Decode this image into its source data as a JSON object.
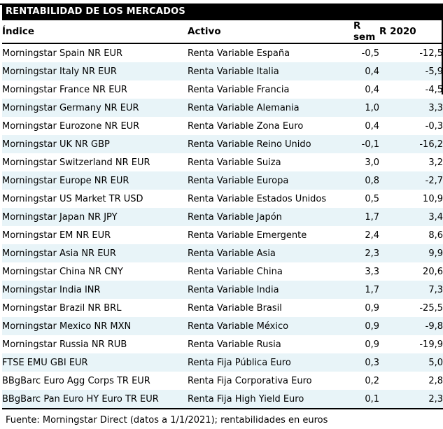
{
  "title": "RENTABILIDAD DE LOS MERCADOS",
  "columns": {
    "indice": "Índice",
    "activo": "Activo",
    "r_sem": "R sem",
    "r_2020": "R 2020"
  },
  "rows": [
    {
      "indice": "Morningstar Spain NR EUR",
      "activo": "Renta Variable España",
      "r_sem": "-0,5",
      "r_2020": "-12,5"
    },
    {
      "indice": "Morningstar Italy NR EUR",
      "activo": "Renta Variable Italia",
      "r_sem": "0,4",
      "r_2020": "-5,9"
    },
    {
      "indice": "Morningstar France NR EUR",
      "activo": "Renta Variable Francia",
      "r_sem": "0,4",
      "r_2020": "-4,5"
    },
    {
      "indice": "Morningstar Germany NR EUR",
      "activo": "Renta Variable Alemania",
      "r_sem": "1,0",
      "r_2020": "3,3"
    },
    {
      "indice": "Morningstar Eurozone NR EUR",
      "activo": "Renta Variable Zona Euro",
      "r_sem": "0,4",
      "r_2020": "-0,3"
    },
    {
      "indice": "Morningstar UK NR GBP",
      "activo": "Renta Variable Reino Unido",
      "r_sem": "-0,1",
      "r_2020": "-16,2"
    },
    {
      "indice": "Morningstar Switzerland NR EUR",
      "activo": "Renta Variable Suiza",
      "r_sem": "3,0",
      "r_2020": "3,2"
    },
    {
      "indice": "Morningstar Europe NR EUR",
      "activo": "Renta Variable Europa",
      "r_sem": "0,8",
      "r_2020": "-2,7"
    },
    {
      "indice": "Morningstar US Market TR USD",
      "activo": "Renta Variable Estados Unidos",
      "r_sem": "0,5",
      "r_2020": "10,9"
    },
    {
      "indice": "Morningstar Japan NR JPY",
      "activo": "Renta Variable Japón",
      "r_sem": "1,7",
      "r_2020": "3,4"
    },
    {
      "indice": "Morningstar EM NR EUR",
      "activo": "Renta Variable Emergente",
      "r_sem": "2,4",
      "r_2020": "8,6"
    },
    {
      "indice": "Morningstar Asia NR EUR",
      "activo": "Renta Variable Asia",
      "r_sem": "2,3",
      "r_2020": "9,9"
    },
    {
      "indice": "Morningstar China NR CNY",
      "activo": "Renta Variable China",
      "r_sem": "3,3",
      "r_2020": "20,6"
    },
    {
      "indice": "Morningstar India INR",
      "activo": "Renta Variable India",
      "r_sem": "1,7",
      "r_2020": "7,3"
    },
    {
      "indice": "Morningstar Brazil NR BRL",
      "activo": "Renta Variable Brasil",
      "r_sem": "0,9",
      "r_2020": "-25,5"
    },
    {
      "indice": "Morningstar Mexico NR MXN",
      "activo": "Renta Variable México",
      "r_sem": "0,9",
      "r_2020": "-9,8"
    },
    {
      "indice": "Morningstar Russia NR RUB",
      "activo": "Renta Variable Rusia",
      "r_sem": "0,9",
      "r_2020": "-19,9"
    },
    {
      "indice": "FTSE EMU GBI EUR",
      "activo": "Renta Fija Pública Euro",
      "r_sem": "0,3",
      "r_2020": "5,0"
    },
    {
      "indice": "BBgBarc Euro Agg Corps TR EUR",
      "activo": "Renta Fija Corporativa Euro",
      "r_sem": "0,2",
      "r_2020": "2,8"
    },
    {
      "indice": "BBgBarc Pan Euro HY Euro TR EUR",
      "activo": "Renta Fija High Yield Euro",
      "r_sem": "0,1",
      "r_2020": "2,3"
    }
  ],
  "footer": "Fuente: Morningstar Direct (datos a 1/1/2021); rentabilidades en euros",
  "colors": {
    "stripe": "#e8f4f8",
    "title_bg": "#000000",
    "title_text": "#ffffff",
    "border": "#000000"
  }
}
